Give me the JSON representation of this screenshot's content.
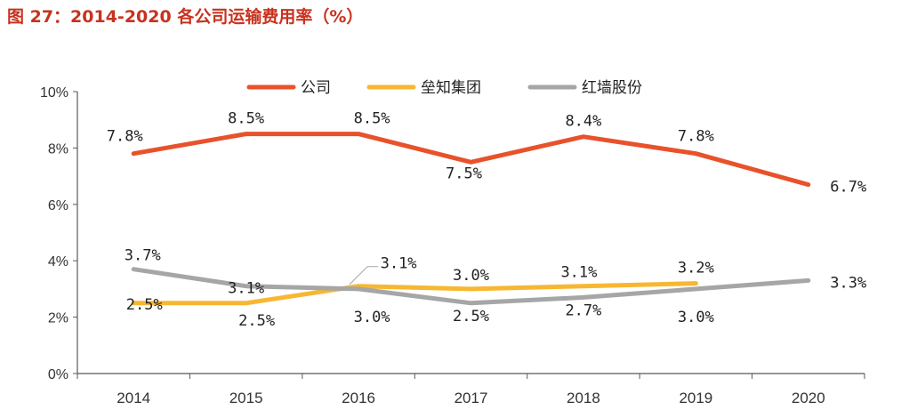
{
  "figure_title": "图 27：2014-2020 各公司运输费用率（%）",
  "colors": {
    "title": "#c8321e",
    "series": [
      "#e8522b",
      "#f7b731",
      "#a6a6a6"
    ]
  },
  "chart_data": {
    "type": "line",
    "title": "",
    "xlabel": "",
    "ylabel": "",
    "x": [
      "2014",
      "2015",
      "2016",
      "2017",
      "2018",
      "2019",
      "2020"
    ],
    "ylim": [
      0,
      10
    ],
    "yticks": [
      "0%",
      "2%",
      "4%",
      "6%",
      "8%",
      "10%"
    ],
    "grid": false,
    "legend_position": "top-center",
    "series": [
      {
        "name": "公司",
        "values": [
          7.8,
          8.5,
          8.5,
          7.5,
          8.4,
          7.8,
          6.7
        ],
        "labels": [
          "7.8%",
          "8.5%",
          "8.5%",
          "7.5%",
          "8.4%",
          "7.8%",
          "6.7%"
        ]
      },
      {
        "name": "垒知集团",
        "values": [
          2.5,
          2.5,
          3.1,
          3.0,
          3.1,
          3.2,
          null
        ],
        "labels": [
          "2.5%",
          "2.5%",
          "3.1%",
          "3.0%",
          "3.1%",
          "3.2%",
          null
        ]
      },
      {
        "name": "红墙股份",
        "values": [
          3.7,
          3.1,
          3.0,
          2.5,
          2.7,
          3.0,
          3.3
        ],
        "labels": [
          "3.7%",
          "3.1%",
          "3.0%",
          "2.5%",
          "2.7%",
          "3.0%",
          "3.3%"
        ]
      }
    ]
  }
}
